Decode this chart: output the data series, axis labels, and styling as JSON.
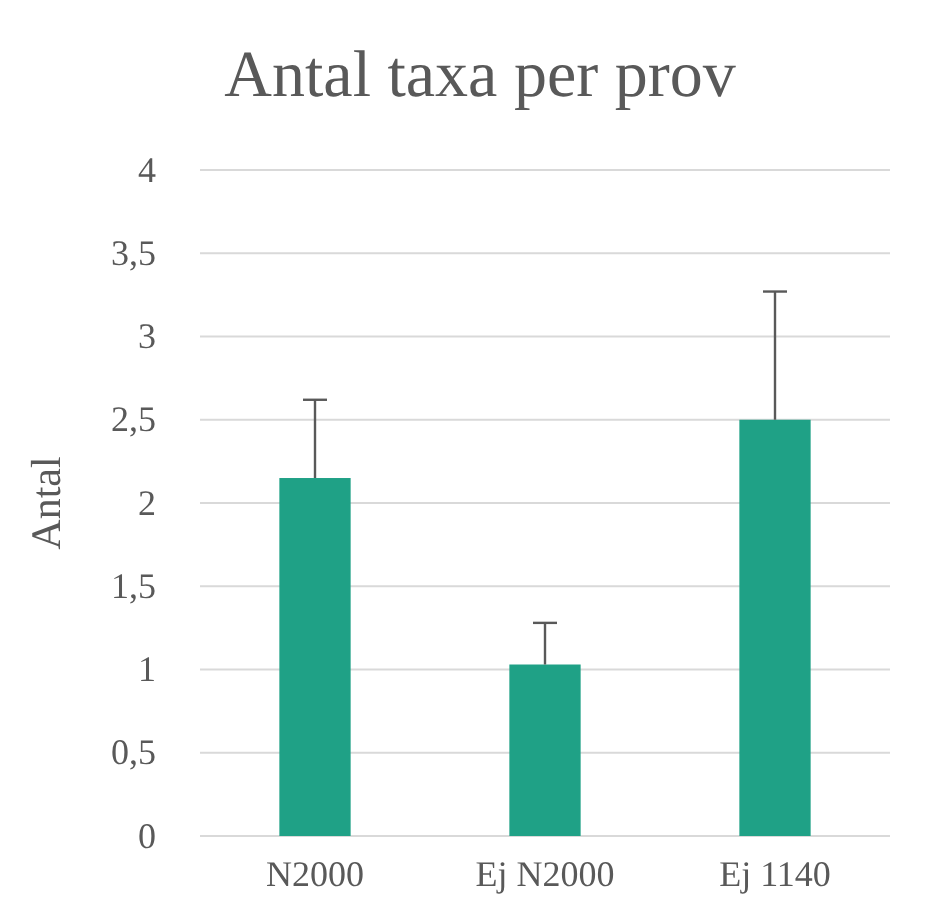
{
  "chart_data": {
    "type": "bar",
    "title": "Antal taxa per prov",
    "ylabel": "Antal",
    "categories": [
      "N2000",
      "Ej N2000",
      "Ej 1140"
    ],
    "values": [
      2.15,
      1.03,
      2.5
    ],
    "errors": [
      [
        2.15,
        2.62
      ],
      [
        1.03,
        1.28
      ],
      [
        2.5,
        3.27
      ]
    ],
    "color": "#1fa186",
    "ylim": [
      0,
      4
    ],
    "yticks": [
      0,
      {
        "value": 0.5,
        "label": "0,5"
      },
      1,
      {
        "value": 1.5,
        "label": "1,5"
      },
      2,
      {
        "value": 2.5,
        "label": "2,5"
      },
      3,
      {
        "value": 3.5,
        "label": "3,5"
      },
      4
    ],
    "grid": "y"
  }
}
